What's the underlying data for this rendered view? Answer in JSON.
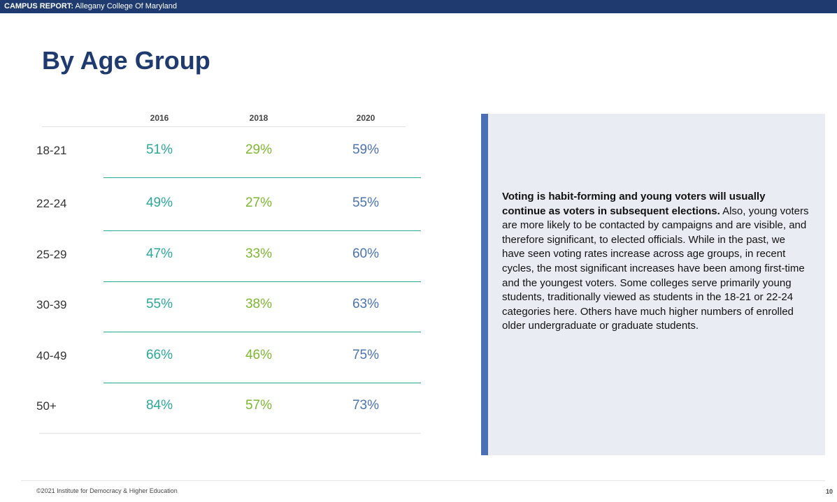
{
  "header": {
    "label": "CAMPUS REPORT:",
    "college": "Allegany College Of Maryland"
  },
  "title": "By Age Group",
  "table": {
    "columns": [
      "2016",
      "2018",
      "2020"
    ],
    "rows": [
      [
        "18-21",
        "51%",
        "29%",
        "59%"
      ],
      [
        "22-24",
        "49%",
        "27%",
        "55%"
      ],
      [
        "25-29",
        "47%",
        "33%",
        "60%"
      ],
      [
        "30-39",
        "55%",
        "38%",
        "63%"
      ],
      [
        "40-49",
        "66%",
        "46%",
        "75%"
      ],
      [
        "50+",
        "84%",
        "57%",
        "73%"
      ]
    ]
  },
  "panel": {
    "bold": "Voting is habit-forming and young voters will usually continue as voters in subsequent elections.",
    "text": "Also, young voters are more likely to be contacted by campaigns and are visible, and therefore significant, to elected officials. While in the past, we have seen voting rates increase across age groups, in recent cycles, the most significant increases have been among first-time and the youngest voters. Some colleges serve primarily young students, traditionally viewed as students in the 18-21 or 22-24 categories here. Others have much higher numbers of enrolled older undergraduate or graduate students."
  },
  "footer": {
    "copyright": "©2021 Institute for Democracy & Higher Education",
    "page": "10"
  }
}
